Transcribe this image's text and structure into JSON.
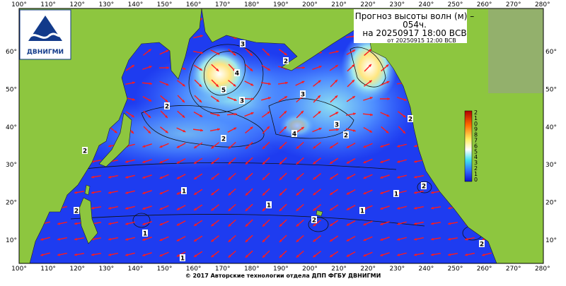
{
  "header": {
    "title_lines": [
      "Прогноз высоты волн (м) –",
      "054ч.",
      "на 20250917 18:00 ВСВ"
    ],
    "issued": "от 20250915 12:00 ВСВ",
    "logo": "ДВНИГМИ"
  },
  "map": {
    "lon_labels": [
      "100°",
      "110°",
      "120°",
      "130°",
      "140°",
      "150°",
      "160°",
      "170°",
      "180°",
      "190°",
      "200°",
      "210°",
      "220°",
      "230°",
      "240°",
      "250°",
      "260°",
      "270°",
      "280°"
    ],
    "lat_labels": [
      "60°",
      "50°",
      "40°",
      "30°",
      "20°",
      "10°"
    ],
    "colorbar_labels": [
      "2",
      "1",
      "0",
      "9",
      "8",
      "7",
      "6",
      "5",
      "4",
      "3",
      "2",
      "1",
      "0"
    ],
    "contour_labels": [
      3,
      4,
      5,
      2,
      3,
      3,
      2,
      2,
      4,
      3,
      2,
      2,
      2,
      1,
      1,
      1,
      1,
      2,
      1,
      2,
      2,
      1,
      2
    ]
  },
  "footer": "© 2017 Авторские технологии отдела ДПП ФГБУ ДВНИГМИ"
}
